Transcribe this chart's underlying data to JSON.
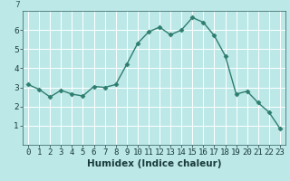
{
  "x": [
    0,
    1,
    2,
    3,
    4,
    5,
    6,
    7,
    8,
    9,
    10,
    11,
    12,
    13,
    14,
    15,
    16,
    17,
    18,
    19,
    20,
    21,
    22,
    23
  ],
  "y": [
    3.15,
    2.9,
    2.5,
    2.85,
    2.65,
    2.55,
    3.05,
    3.0,
    3.15,
    4.2,
    5.3,
    5.9,
    6.15,
    5.75,
    6.0,
    6.65,
    6.4,
    5.7,
    4.65,
    2.65,
    2.8,
    2.2,
    1.7,
    0.85
  ],
  "line_color": "#2e7d6e",
  "marker": "D",
  "marker_size": 2.5,
  "bg_color": "#bde8e8",
  "grid_color": "#ffffff",
  "xlabel": "Humidex (Indice chaleur)",
  "y_top_label": "7",
  "xlim": [
    -0.5,
    23.5
  ],
  "ylim": [
    0,
    7
  ],
  "yticks": [
    1,
    2,
    3,
    4,
    5,
    6
  ],
  "xtick_labels": [
    "0",
    "1",
    "2",
    "3",
    "4",
    "5",
    "6",
    "7",
    "8",
    "9",
    "10",
    "11",
    "12",
    "13",
    "14",
    "15",
    "16",
    "17",
    "18",
    "19",
    "20",
    "21",
    "22",
    "23"
  ],
  "tick_fontsize": 6.5,
  "xlabel_fontsize": 7.5,
  "linewidth": 1.0
}
